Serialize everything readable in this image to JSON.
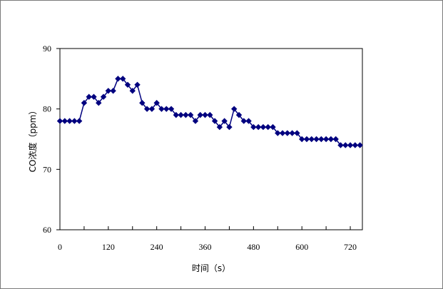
{
  "chart_data": {
    "type": "line",
    "title": "",
    "xlabel": "时间（s）",
    "ylabel": "CO浓度（ppm）",
    "xlim": [
      0,
      750
    ],
    "ylim": [
      60,
      90
    ],
    "x_ticks": [
      0,
      120,
      240,
      360,
      480,
      600,
      720
    ],
    "y_ticks": [
      60,
      70,
      80,
      90
    ],
    "grid": false,
    "legend": "none",
    "marker": "diamond",
    "color": "#00007f",
    "series": [
      {
        "x": [
          0,
          12,
          24,
          36,
          48,
          60,
          72,
          84,
          96,
          108,
          120,
          132,
          144,
          156,
          168,
          180,
          192,
          204,
          216,
          228,
          240,
          252,
          264,
          276,
          288,
          300,
          312,
          324,
          336,
          348,
          360,
          372,
          384,
          396,
          408,
          420,
          432,
          444,
          456,
          468,
          480,
          492,
          504,
          516,
          528,
          540,
          552,
          564,
          576,
          588,
          600,
          612,
          624,
          636,
          648,
          660,
          672,
          684,
          696,
          708,
          720,
          732,
          744
        ],
        "values": [
          78,
          78,
          78,
          78,
          78,
          81,
          82,
          82,
          81,
          82,
          83,
          83,
          85,
          85,
          84,
          83,
          84,
          81,
          80,
          80,
          81,
          80,
          80,
          80,
          79,
          79,
          79,
          79,
          78,
          79,
          79,
          79,
          78,
          77,
          78,
          77,
          80,
          79,
          78,
          78,
          77,
          77,
          77,
          77,
          77,
          76,
          76,
          76,
          76,
          76,
          75,
          75,
          75,
          75,
          75,
          75,
          75,
          75,
          74,
          74,
          74,
          74,
          74
        ]
      }
    ]
  }
}
